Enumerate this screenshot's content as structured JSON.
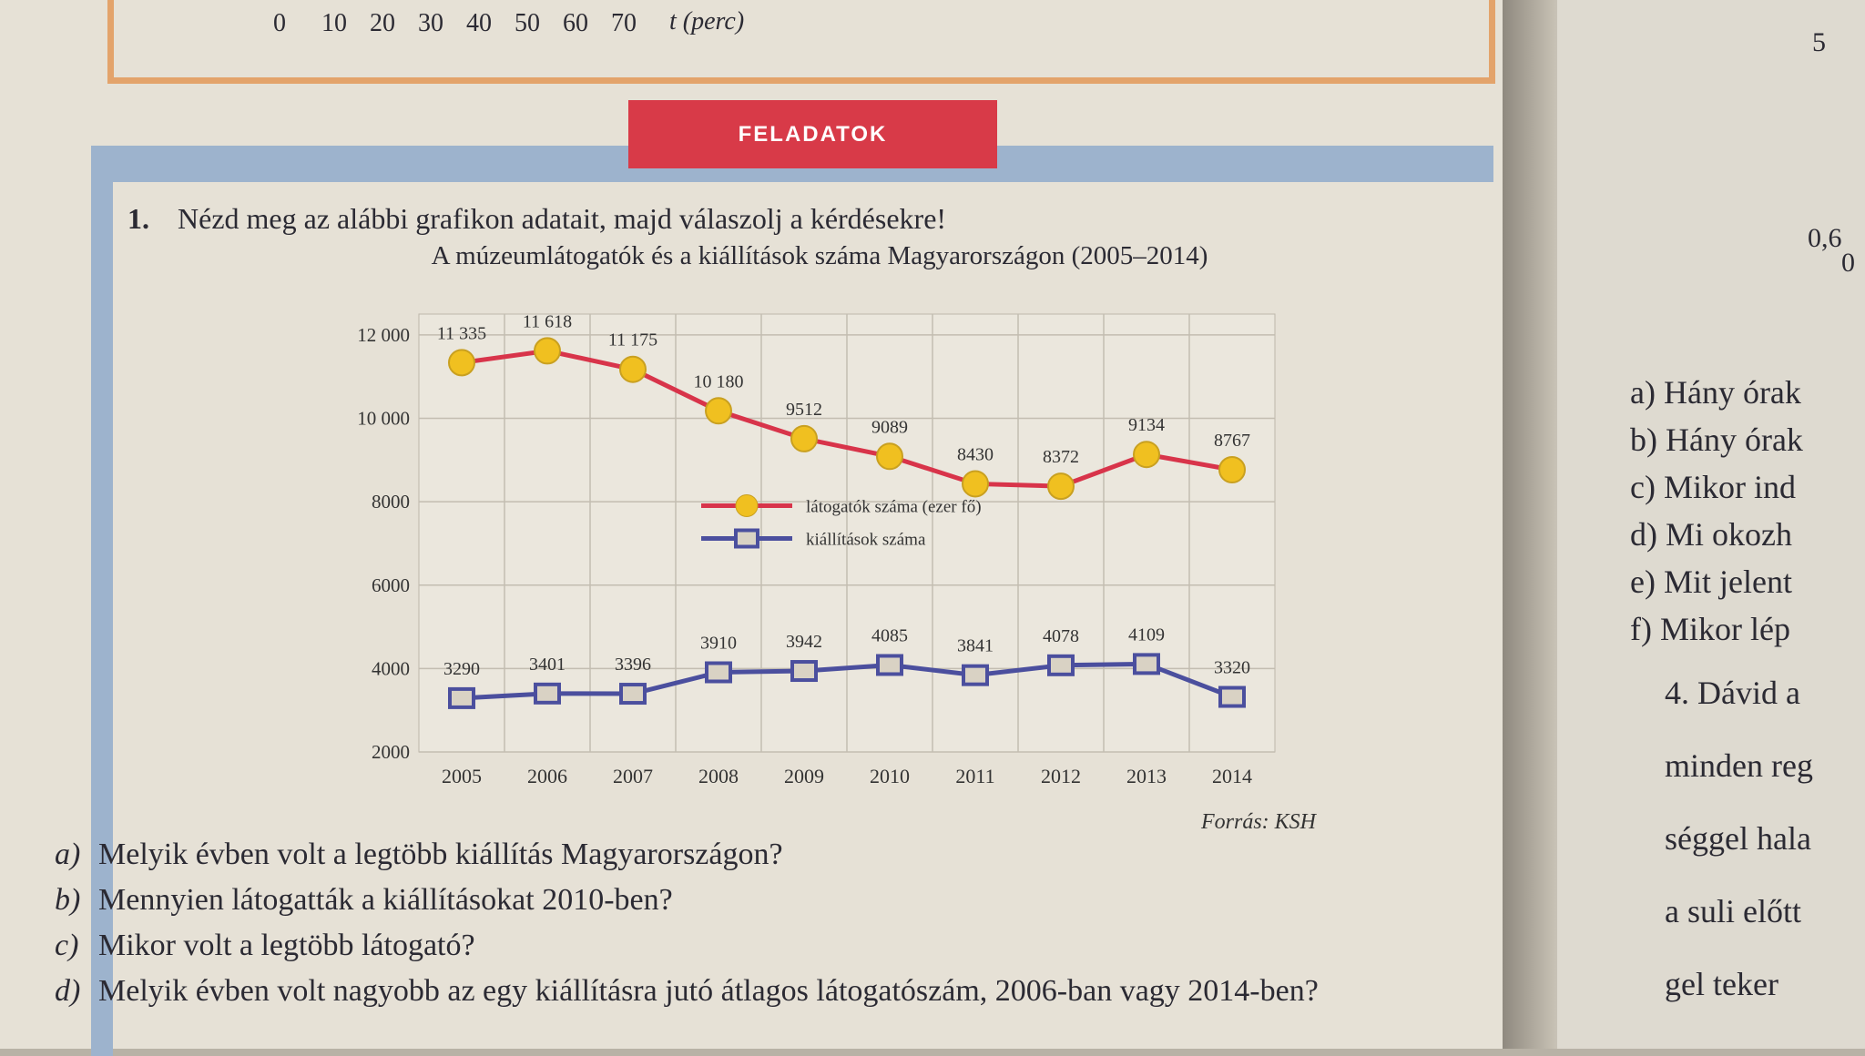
{
  "top_axis": {
    "ticks": [
      "0",
      "10",
      "20",
      "30",
      "40",
      "50",
      "60",
      "70"
    ],
    "label": "t (perc)"
  },
  "section": "FELADATOK",
  "task": {
    "number": "1.",
    "text": "Nézd meg az alábbi grafikon adatait, majd válaszolj a kérdésekre!"
  },
  "chart_data": {
    "type": "line",
    "title": "A múzeumlátogatók és a kiállítások száma Magyarországon (2005–2014)",
    "source": "Forrás: KSH",
    "categories": [
      "2005",
      "2006",
      "2007",
      "2008",
      "2009",
      "2010",
      "2011",
      "2012",
      "2013",
      "2014"
    ],
    "series": [
      {
        "name": "látogatók száma (ezer fő)",
        "color": "#d8344a",
        "marker": "circle",
        "marker_color": "#f0c020",
        "values": [
          11335,
          11618,
          11175,
          10180,
          9512,
          9089,
          8430,
          8372,
          9134,
          8767
        ],
        "value_labels": [
          "11 335",
          "11 618",
          "11 175",
          "10 180",
          "9512",
          "9089",
          "8430",
          "8372",
          "9134",
          "8767"
        ]
      },
      {
        "name": "kiállítások száma",
        "color": "#4b4f9e",
        "marker": "square",
        "marker_color": "#d9d2c4",
        "values": [
          3290,
          3401,
          3396,
          3910,
          3942,
          4085,
          3841,
          4078,
          4109,
          3320
        ]
      }
    ],
    "ylim": [
      2000,
      12500
    ],
    "yticks": [
      2000,
      4000,
      6000,
      8000,
      {
        "value": 10000,
        "label": "10 000"
      },
      {
        "value": 12000,
        "label": "12 000"
      }
    ],
    "grid": true,
    "legend": "center"
  },
  "questions": [
    {
      "letter": "a)",
      "text": "Melyik évben volt a legtöbb kiállítás Magyarországon?"
    },
    {
      "letter": "b)",
      "text": "Mennyien látogatták a kiállításokat 2010-ben?"
    },
    {
      "letter": "c)",
      "text": "Mikor volt a legtöbb látogató?"
    },
    {
      "letter": "d)",
      "text": "Melyik évben volt nagyobb az egy kiállításra jutó átlagos látogatószám, 2006-ban vagy 2014-ben?"
    }
  ],
  "right_page": {
    "numbers": [
      "5",
      "0,6",
      "0"
    ],
    "lines": [
      "a) Hány órak",
      "b) Hány órak",
      "c) Mikor ind",
      "d) Mi okozh",
      "e) Mit jelent",
      "f) Mikor lép",
      "4. Dávid a",
      "minden reg",
      "séggel hala",
      "a suli előtt",
      "gel teker"
    ]
  }
}
